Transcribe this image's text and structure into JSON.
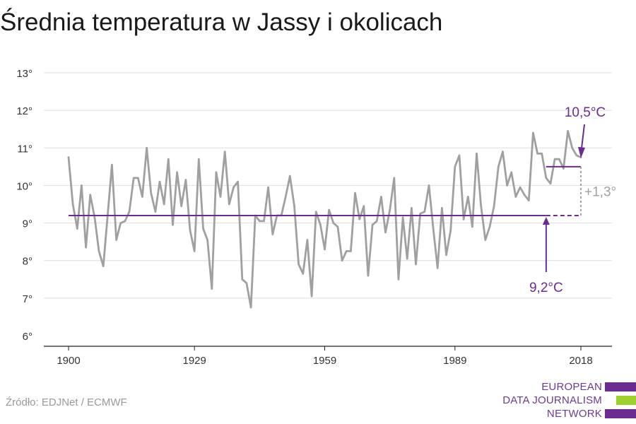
{
  "title": "Średnia temperatura w Jassy i okolicach",
  "source": "Źródło: EDJNet / ECMWF",
  "logo": {
    "lines": [
      "EUROPEAN",
      "DATA JOURNALISM",
      "NETWORK"
    ],
    "bar_colors": [
      "#6a2c8f",
      "#9dd12f",
      "#6a2c8f"
    ],
    "text_color": "#6a3d8f"
  },
  "colors": {
    "series": "#a0a0a0",
    "accent": "#6a2c8f",
    "delta": "#a0a0a0",
    "grid": "#dddddd",
    "text": "#333333"
  },
  "chart_data": {
    "type": "line",
    "title": "Średnia temperatura w Jassy i okolicach",
    "xlabel": "",
    "ylabel": "",
    "x_ticks": [
      1900,
      1929,
      1959,
      1989,
      2018
    ],
    "y_ticks": [
      6,
      7,
      8,
      9,
      10,
      11,
      12,
      13
    ],
    "y_tick_labels": [
      "6°",
      "7°",
      "8°",
      "9°",
      "10°",
      "11°",
      "12°",
      "13°"
    ],
    "xlim": [
      1900,
      2018
    ],
    "ylim": [
      6,
      13
    ],
    "grid": true,
    "series": [
      {
        "x": [
          1900,
          1901,
          1902,
          1903,
          1904,
          1905,
          1906,
          1907,
          1908,
          1909,
          1910,
          1911,
          1912,
          1913,
          1914,
          1915,
          1916,
          1917,
          1918,
          1919,
          1920,
          1921,
          1922,
          1923,
          1924,
          1925,
          1926,
          1927,
          1928,
          1929,
          1930,
          1931,
          1932,
          1933,
          1934,
          1935,
          1936,
          1937,
          1938,
          1939,
          1940,
          1941,
          1942,
          1943,
          1944,
          1945,
          1946,
          1947,
          1948,
          1949,
          1950,
          1951,
          1952,
          1953,
          1954,
          1955,
          1956,
          1957,
          1958,
          1959,
          1960,
          1961,
          1962,
          1963,
          1964,
          1965,
          1966,
          1967,
          1968,
          1969,
          1970,
          1971,
          1972,
          1973,
          1974,
          1975,
          1976,
          1977,
          1978,
          1979,
          1980,
          1981,
          1982,
          1983,
          1984,
          1985,
          1986,
          1987,
          1988,
          1989,
          1990,
          1991,
          1992,
          1993,
          1994,
          1995,
          1996,
          1997,
          1998,
          1999,
          2000,
          2001,
          2002,
          2003,
          2004,
          2005,
          2006,
          2007,
          2008,
          2009,
          2010,
          2011,
          2012,
          2013,
          2014,
          2015,
          2016,
          2017,
          2018
        ],
        "y": [
          10.75,
          9.5,
          8.85,
          10.0,
          8.35,
          9.75,
          9.15,
          8.25,
          7.85,
          9.2,
          10.55,
          8.55,
          9.0,
          9.05,
          9.3,
          10.2,
          10.2,
          9.7,
          11.0,
          9.8,
          9.3,
          10.1,
          9.5,
          10.7,
          8.95,
          10.35,
          9.45,
          10.15,
          8.8,
          8.25,
          10.7,
          8.85,
          8.55,
          7.25,
          10.35,
          9.7,
          10.9,
          9.5,
          9.95,
          10.1,
          7.5,
          7.4,
          6.75,
          9.2,
          9.05,
          9.05,
          9.95,
          8.7,
          9.2,
          9.2,
          9.7,
          10.25,
          9.45,
          7.9,
          7.65,
          8.55,
          7.05,
          9.3,
          8.95,
          8.3,
          9.35,
          9.0,
          8.9,
          8.0,
          8.25,
          8.25,
          9.8,
          9.1,
          9.45,
          7.6,
          8.95,
          9.05,
          9.7,
          8.75,
          9.35,
          10.2,
          7.5,
          9.15,
          8.05,
          9.4,
          7.9,
          9.25,
          9.3,
          10.0,
          8.85,
          7.8,
          9.4,
          8.15,
          8.8,
          10.5,
          10.8,
          9.1,
          9.7,
          8.9,
          10.85,
          9.45,
          8.55,
          8.9,
          9.45,
          10.5,
          10.9,
          10.0,
          10.35,
          9.7,
          9.95,
          9.75,
          9.6,
          11.4,
          10.85,
          10.85,
          10.2,
          10.05,
          10.7,
          10.7,
          10.45,
          11.45,
          11.0,
          10.8,
          10.75
        ]
      }
    ],
    "baseline": {
      "value": 9.2,
      "label": "9,2°C",
      "x_start": 1900,
      "x_solid_end": 2010,
      "x_end": 2018,
      "arrow_at": 2010
    },
    "recent": {
      "value": 10.5,
      "label": "10,5°C",
      "x_start": 2010,
      "x_end": 2018
    },
    "delta": {
      "label": "+1,3°"
    }
  }
}
